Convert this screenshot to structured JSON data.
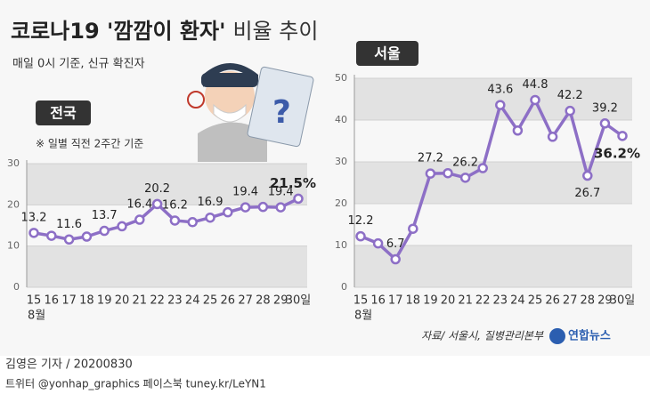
{
  "header": {
    "title": "코로나19 '깜깜이 환자'",
    "title_rest": "비율 추이",
    "subtitle": "매일 0시 기준, 신규 확진자"
  },
  "chart_data": [
    {
      "type": "line",
      "title": "전국",
      "note": "※ 일별 직전 2주간 기준",
      "categories": [
        "15",
        "16",
        "17",
        "18",
        "19",
        "20",
        "21",
        "22",
        "23",
        "24",
        "25",
        "26",
        "27",
        "28",
        "29",
        "30일"
      ],
      "x_note": "8월",
      "values": [
        13.2,
        12.5,
        11.6,
        12.3,
        13.7,
        14.8,
        16.4,
        20.2,
        16.2,
        15.8,
        16.9,
        18.2,
        19.4,
        19.5,
        19.4,
        21.5
      ],
      "value_labels": [
        "13.2",
        null,
        "11.6",
        null,
        "13.7",
        null,
        "16.4",
        "20.2",
        "16.2",
        null,
        "16.9",
        null,
        "19.4",
        null,
        "19.4",
        "21.5%"
      ],
      "color": "#8d6fc6",
      "ylim": [
        0,
        30
      ],
      "yticks": [
        0,
        10,
        20,
        30
      ],
      "grid": true
    },
    {
      "type": "line",
      "title": "서울",
      "categories": [
        "15",
        "16",
        "17",
        "18",
        "19",
        "20",
        "21",
        "22",
        "23",
        "24",
        "25",
        "26",
        "27",
        "28",
        "29",
        "30일"
      ],
      "x_note": "8월",
      "values": [
        12.2,
        10.5,
        6.7,
        14,
        27.2,
        27.3,
        26.2,
        28.5,
        43.6,
        37.5,
        44.8,
        36,
        42.2,
        26.7,
        39.2,
        36.2
      ],
      "value_labels": [
        "12.2",
        null,
        "6.7",
        null,
        "27.2",
        null,
        "26.2",
        null,
        "43.6",
        null,
        "44.8",
        null,
        "42.2",
        "26.7",
        "39.2",
        "36.2%"
      ],
      "color": "#8d6fc6",
      "ylim": [
        0,
        50
      ],
      "yticks": [
        0,
        10,
        20,
        30,
        40,
        50
      ],
      "grid": true
    }
  ],
  "footer": {
    "source": "자료/ 서울시, 질병관리본부",
    "logo": "연합뉴스",
    "byline": "김영은 기자 / 20200830",
    "social": "트위터 @yonhap_graphics  페이스북 tuney.kr/LeYN1"
  }
}
